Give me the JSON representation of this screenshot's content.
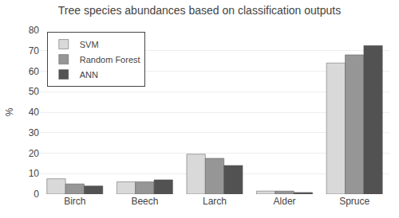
{
  "chart_data": {
    "type": "bar",
    "title": "Tree species abundances based on classification outputs",
    "categories": [
      "Birch",
      "Beech",
      "Larch",
      "Alder",
      "Spruce"
    ],
    "series": [
      {
        "name": "SVM",
        "color": "#d9d9d9",
        "values": [
          7.5,
          6.0,
          19.5,
          1.5,
          64.0
        ]
      },
      {
        "name": "Random Forest",
        "color": "#969696",
        "values": [
          5.0,
          6.0,
          17.5,
          1.5,
          68.0
        ]
      },
      {
        "name": "ANN",
        "color": "#525252",
        "values": [
          4.0,
          7.0,
          14.0,
          0.8,
          72.5
        ]
      }
    ],
    "ylabel": "%",
    "ylim": [
      0,
      80
    ],
    "yticks": [
      0,
      10,
      20,
      30,
      40,
      50,
      60,
      70,
      80
    ],
    "grid": true,
    "legend": "upper left"
  }
}
